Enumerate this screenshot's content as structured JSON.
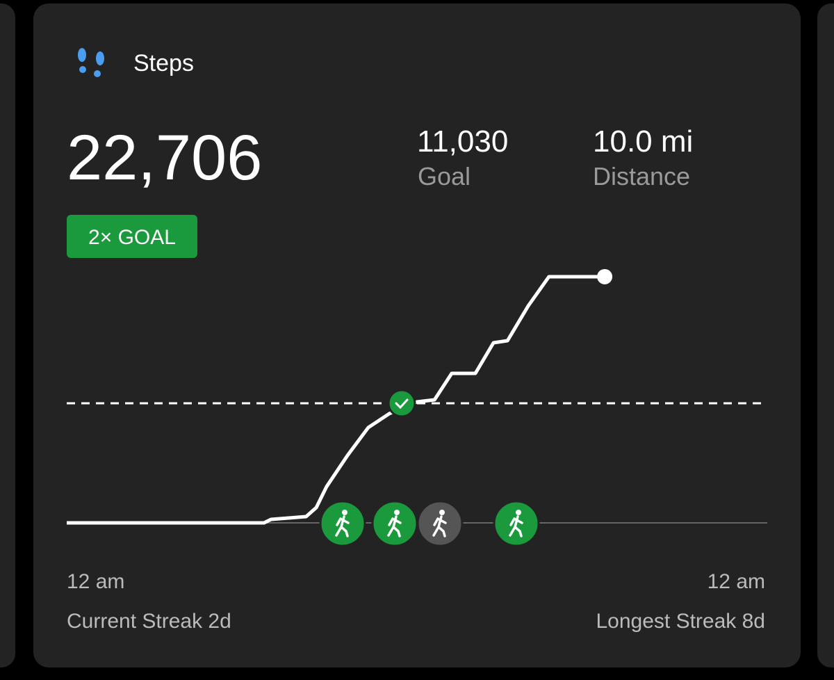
{
  "header": {
    "title": "Steps"
  },
  "stats": {
    "steps": "22,706",
    "goal_value": "11,030",
    "goal_label": "Goal",
    "distance_value": "10.0 mi",
    "distance_label": "Distance"
  },
  "badge": "2× GOAL",
  "chart_data": {
    "type": "line",
    "x": [
      0,
      6.76,
      7.0,
      8.2,
      8.55,
      8.9,
      9.62,
      10.33,
      11.05,
      12.0,
      12.6,
      13.19,
      14.0,
      14.62,
      15.1,
      15.81,
      16.52,
      18.43
    ],
    "values": [
      0,
      0,
      320,
      580,
      1410,
      3330,
      6220,
      8790,
      10070,
      11160,
      11350,
      13790,
      13790,
      16610,
      16800,
      20010,
      22706,
      22706
    ],
    "color": "#ffffff",
    "goal_line": 11030,
    "xlim": [
      0,
      24
    ],
    "ylim": [
      0,
      25000
    ],
    "xticks": [
      {
        "value": 0,
        "label": "12 am"
      },
      {
        "value": 24,
        "label": "12 am"
      }
    ]
  },
  "footer": {
    "current_streak": "Current Streak 2d",
    "longest_streak": "Longest Streak 8d"
  }
}
